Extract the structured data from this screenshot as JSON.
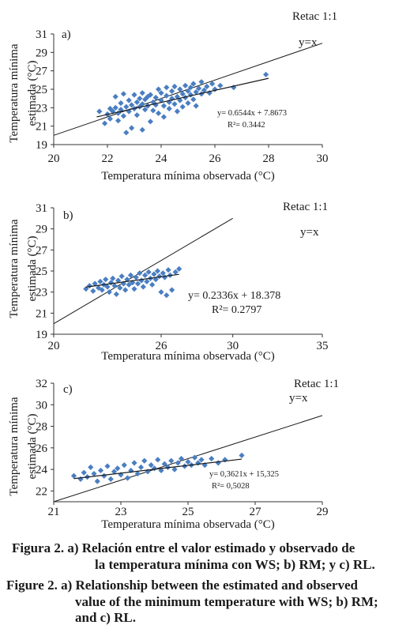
{
  "panels": [
    {
      "label": "a)",
      "retac_label": "Retac 1:1",
      "identity_label": "y=x",
      "equation": "y= 0.6544x + 7.8673",
      "r2": "R²= 0.3442",
      "xlabel": "Temperatura mínima observada (°C)",
      "ylabel_line1": "Temperatura mínima",
      "ylabel_line2": "estimada (°C)",
      "x_ticks": [
        "20",
        "22",
        "24",
        "26",
        "28",
        "30"
      ],
      "y_ticks": [
        "19",
        "21",
        "23",
        "25",
        "27",
        "29",
        "31"
      ]
    },
    {
      "label": "b)",
      "retac_label": "Retac 1:1",
      "identity_label": "y=x",
      "equation": "y= 0.2336x + 18.378",
      "r2": "R²= 0.2797",
      "xlabel": "Temperatura mínima observada (°C)",
      "ylabel_line1": "Temperatura mínima",
      "ylabel_line2": "estimada (°C)",
      "x_ticks": [
        "20",
        "26",
        "30",
        "35"
      ],
      "y_ticks": [
        "19",
        "21",
        "23",
        "25",
        "27",
        "29",
        "31"
      ]
    },
    {
      "label": "c)",
      "retac_label": "Retac 1:1",
      "identity_label": "y=x",
      "equation": "y= 0,3621x + 15,325",
      "r2": "R²= 0,5028",
      "xlabel": "Temperatura mínima observada (°C)",
      "ylabel_line1": "Temperatura mínima",
      "ylabel_line2": "estimada (°C)",
      "x_ticks": [
        "21",
        "23",
        "25",
        "27",
        "29"
      ],
      "y_ticks": [
        "22",
        "24",
        "26",
        "28",
        "30",
        "32"
      ]
    }
  ],
  "caption": {
    "es_line1": "Figura 2. a) Relación entre el valor estimado y observado de",
    "es_line2": "la temperatura mínima con WS; b) RM; y c) RL.",
    "en_line1": "Figure 2. a) Relationship between the estimated and observed",
    "en_line2": "value of the minimum temperature with WS; b) RM;",
    "en_line3": "and c) RL."
  },
  "colors": {
    "points": "#4a7ec2",
    "lines": "#1a1a1a",
    "axes": "#333333"
  },
  "chart_data": [
    {
      "type": "scatter",
      "title": "",
      "xlabel": "Temperatura mínima observada (°C)",
      "ylabel": "Temperatura mínima estimada (°C)",
      "xlim": [
        20,
        30
      ],
      "ylim": [
        19,
        31
      ],
      "x_ticks": [
        20,
        22,
        24,
        26,
        28,
        30
      ],
      "y_ticks": [
        19,
        21,
        23,
        25,
        27,
        29,
        31
      ],
      "series": [
        {
          "name": "Retac 1:1",
          "line": {
            "slope": 1,
            "intercept": 0,
            "x_range": [
              20,
              30
            ]
          }
        },
        {
          "trendline": {
            "slope": 0.6544,
            "intercept": 7.8673,
            "x_range": [
              21.6,
              28
            ],
            "r2": 0.3442
          },
          "points": [
            [
              21.7,
              22.6
            ],
            [
              21.9,
              21.3
            ],
            [
              22.0,
              22.3
            ],
            [
              22.1,
              22.9
            ],
            [
              22.1,
              21.8
            ],
            [
              22.2,
              22.6
            ],
            [
              22.3,
              24.2
            ],
            [
              22.3,
              23.0
            ],
            [
              22.4,
              22.4
            ],
            [
              22.4,
              21.6
            ],
            [
              22.5,
              23.5
            ],
            [
              22.5,
              22.8
            ],
            [
              22.6,
              24.5
            ],
            [
              22.6,
              22.1
            ],
            [
              22.7,
              23.1
            ],
            [
              22.7,
              20.3
            ],
            [
              22.8,
              23.8
            ],
            [
              22.8,
              22.6
            ],
            [
              22.9,
              20.8
            ],
            [
              22.9,
              23.3
            ],
            [
              23.0,
              24.4
            ],
            [
              23.0,
              22.9
            ],
            [
              23.1,
              23.6
            ],
            [
              23.1,
              22.2
            ],
            [
              23.2,
              24.0
            ],
            [
              23.2,
              23.1
            ],
            [
              23.3,
              24.6
            ],
            [
              23.3,
              23.4
            ],
            [
              23.3,
              20.6
            ],
            [
              23.4,
              22.8
            ],
            [
              23.4,
              23.9
            ],
            [
              23.5,
              24.2
            ],
            [
              23.5,
              23.2
            ],
            [
              23.6,
              21.5
            ],
            [
              23.6,
              24.4
            ],
            [
              23.7,
              23.6
            ],
            [
              23.7,
              22.7
            ],
            [
              23.8,
              24.1
            ],
            [
              23.8,
              23.3
            ],
            [
              23.9,
              25.0
            ],
            [
              23.9,
              22.4
            ],
            [
              24.0,
              23.8
            ],
            [
              24.0,
              24.6
            ],
            [
              24.1,
              23.2
            ],
            [
              24.1,
              22.0
            ],
            [
              24.2,
              24.3
            ],
            [
              24.2,
              25.2
            ],
            [
              24.3,
              23.6
            ],
            [
              24.3,
              22.9
            ],
            [
              24.4,
              24.8
            ],
            [
              24.4,
              24.0
            ],
            [
              24.5,
              23.4
            ],
            [
              24.5,
              25.3
            ],
            [
              24.6,
              24.2
            ],
            [
              24.6,
              22.6
            ],
            [
              24.7,
              25.0
            ],
            [
              24.7,
              23.8
            ],
            [
              24.8,
              24.5
            ],
            [
              24.8,
              23.1
            ],
            [
              24.9,
              25.4
            ],
            [
              24.9,
              24.1
            ],
            [
              25.0,
              24.8
            ],
            [
              25.0,
              23.5
            ],
            [
              25.1,
              25.2
            ],
            [
              25.1,
              24.4
            ],
            [
              25.2,
              23.9
            ],
            [
              25.2,
              25.6
            ],
            [
              25.3,
              24.7
            ],
            [
              25.3,
              23.2
            ],
            [
              25.4,
              25.1
            ],
            [
              25.5,
              24.5
            ],
            [
              25.5,
              25.8
            ],
            [
              25.6,
              24.9
            ],
            [
              25.7,
              25.3
            ],
            [
              25.8,
              24.6
            ],
            [
              25.9,
              25.6
            ],
            [
              26.0,
              25.0
            ],
            [
              26.2,
              25.4
            ],
            [
              26.7,
              25.2
            ],
            [
              27.9,
              26.6
            ]
          ]
        }
      ]
    },
    {
      "type": "scatter",
      "title": "",
      "xlabel": "Temperatura mínima observada (°C)",
      "ylabel": "Temperatura mínima estimada (°C)",
      "xlim": [
        20,
        35
      ],
      "ylim": [
        19,
        31
      ],
      "x_ticks": [
        20,
        26,
        30,
        35
      ],
      "y_ticks": [
        19,
        21,
        23,
        25,
        27,
        29,
        31
      ],
      "series": [
        {
          "name": "Retac 1:1",
          "line": {
            "slope": 1,
            "intercept": 0,
            "x_range": [
              20,
              30
            ]
          }
        },
        {
          "trendline": {
            "slope": 0.2336,
            "intercept": 18.378,
            "x_range": [
              21.8,
              27
            ],
            "r2": 0.2797
          },
          "points": [
            [
              21.8,
              23.3
            ],
            [
              22.0,
              23.6
            ],
            [
              22.2,
              23.1
            ],
            [
              22.3,
              23.8
            ],
            [
              22.5,
              23.4
            ],
            [
              22.6,
              24.0
            ],
            [
              22.7,
              23.2
            ],
            [
              22.8,
              23.7
            ],
            [
              22.9,
              24.2
            ],
            [
              23.0,
              23.5
            ],
            [
              23.1,
              23.0
            ],
            [
              23.2,
              23.9
            ],
            [
              23.3,
              24.3
            ],
            [
              23.4,
              23.6
            ],
            [
              23.5,
              22.8
            ],
            [
              23.6,
              24.1
            ],
            [
              23.7,
              23.4
            ],
            [
              23.8,
              24.5
            ],
            [
              23.9,
              23.8
            ],
            [
              24.0,
              23.2
            ],
            [
              24.1,
              24.2
            ],
            [
              24.2,
              23.7
            ],
            [
              24.3,
              24.6
            ],
            [
              24.4,
              23.9
            ],
            [
              24.5,
              23.3
            ],
            [
              24.6,
              24.4
            ],
            [
              24.7,
              23.8
            ],
            [
              24.8,
              24.8
            ],
            [
              24.9,
              24.1
            ],
            [
              25.0,
              23.5
            ],
            [
              25.1,
              24.6
            ],
            [
              25.2,
              24.0
            ],
            [
              25.3,
              24.9
            ],
            [
              25.4,
              24.3
            ],
            [
              25.5,
              23.7
            ],
            [
              25.6,
              24.7
            ],
            [
              25.7,
              24.2
            ],
            [
              25.8,
              25.0
            ],
            [
              25.9,
              24.5
            ],
            [
              26.0,
              23.0
            ],
            [
              26.1,
              24.8
            ],
            [
              26.2,
              24.4
            ],
            [
              26.3,
              22.7
            ],
            [
              26.4,
              25.1
            ],
            [
              26.5,
              24.6
            ],
            [
              26.6,
              23.2
            ],
            [
              26.8,
              24.9
            ],
            [
              27.0,
              25.2
            ]
          ]
        }
      ]
    },
    {
      "type": "scatter",
      "title": "",
      "xlabel": "Temperatura mínima observada (°C)",
      "ylabel": "Temperatura mínima estimada (°C)",
      "xlim": [
        21,
        29
      ],
      "ylim": [
        21,
        32
      ],
      "x_ticks": [
        21,
        23,
        25,
        27,
        29
      ],
      "y_ticks": [
        22,
        24,
        26,
        28,
        30,
        32
      ],
      "series": [
        {
          "name": "Retac 1:1",
          "line": {
            "slope": 1,
            "intercept": 0,
            "x_range": [
              21,
              29
            ]
          }
        },
        {
          "trendline": {
            "slope": 0.3621,
            "intercept": 15.325,
            "x_range": [
              21.6,
              26.6
            ],
            "r2": 0.5028
          },
          "points": [
            [
              21.6,
              23.4
            ],
            [
              21.8,
              23.1
            ],
            [
              21.9,
              23.7
            ],
            [
              22.0,
              23.3
            ],
            [
              22.1,
              24.2
            ],
            [
              22.2,
              23.6
            ],
            [
              22.3,
              22.9
            ],
            [
              22.4,
              23.9
            ],
            [
              22.5,
              23.4
            ],
            [
              22.6,
              24.3
            ],
            [
              22.7,
              23.1
            ],
            [
              22.8,
              23.8
            ],
            [
              22.9,
              24.1
            ],
            [
              23.0,
              23.5
            ],
            [
              23.1,
              24.4
            ],
            [
              23.2,
              23.2
            ],
            [
              23.3,
              23.9
            ],
            [
              23.4,
              24.6
            ],
            [
              23.5,
              23.6
            ],
            [
              23.6,
              24.2
            ],
            [
              23.7,
              24.8
            ],
            [
              23.8,
              23.8
            ],
            [
              23.9,
              24.4
            ],
            [
              24.0,
              24.1
            ],
            [
              24.1,
              24.9
            ],
            [
              24.2,
              23.9
            ],
            [
              24.3,
              24.5
            ],
            [
              24.4,
              24.2
            ],
            [
              24.5,
              24.8
            ],
            [
              24.6,
              24.0
            ],
            [
              24.7,
              24.6
            ],
            [
              24.8,
              25.0
            ],
            [
              24.9,
              24.3
            ],
            [
              25.0,
              24.7
            ],
            [
              25.1,
              24.4
            ],
            [
              25.2,
              25.1
            ],
            [
              25.3,
              24.6
            ],
            [
              25.4,
              24.9
            ],
            [
              25.5,
              24.4
            ],
            [
              25.7,
              25.0
            ],
            [
              25.9,
              24.6
            ],
            [
              26.1,
              24.9
            ],
            [
              26.6,
              25.3
            ]
          ]
        }
      ]
    }
  ]
}
